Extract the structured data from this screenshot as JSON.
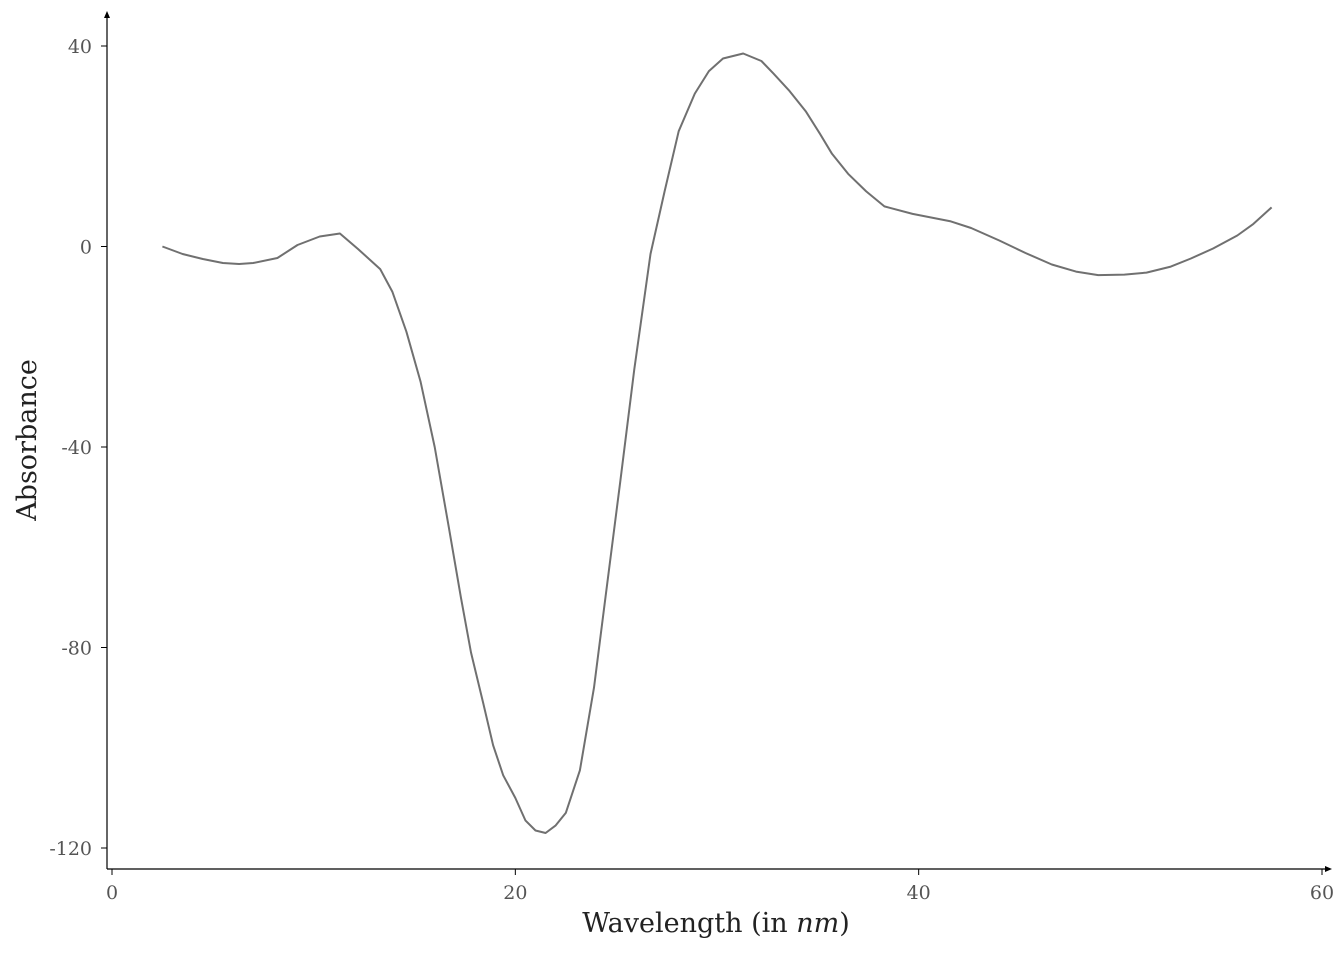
{
  "chart_data": {
    "type": "line",
    "title": "",
    "xlabel": "Wavelength (in ",
    "xlabel_italic": "nm",
    "xlabel_suffix": ")",
    "ylabel": "Absorbance",
    "xlim": [
      0,
      60
    ],
    "ylim": [
      -124,
      44
    ],
    "x_ticks": [
      0,
      20,
      40,
      60
    ],
    "y_ticks": [
      -120,
      -80,
      -40,
      0,
      40
    ],
    "x_tick_labels": [
      "0",
      "20",
      "40",
      "60"
    ],
    "y_tick_labels": [
      "-120",
      "-80",
      "-40",
      "0",
      "40"
    ],
    "grid": false,
    "legend": "none",
    "line_color": "#707070",
    "series": [
      {
        "x": [
          2.5,
          3.5,
          4.5,
          5.5,
          6.3,
          7.0,
          8.2,
          9.2,
          10.3,
          11.3,
          12.2,
          13.3,
          13.9,
          14.6,
          15.3,
          16.0,
          16.7,
          17.3,
          17.8,
          18.4,
          18.9,
          19.4,
          20.0,
          20.5,
          21.0,
          21.5,
          22.0,
          22.5,
          23.2,
          23.9,
          24.5,
          25.2,
          25.9,
          26.7,
          27.4,
          28.1,
          28.9,
          29.6,
          30.3,
          31.3,
          32.2,
          32.8,
          33.6,
          34.4,
          35.1,
          35.7,
          36.5,
          37.4,
          38.3,
          39.7,
          41.6,
          42.6,
          44.0,
          45.3,
          46.6,
          47.8,
          48.9,
          50.2,
          51.3,
          52.5,
          53.5,
          54.6,
          55.8,
          56.6,
          57.5
        ],
        "y": [
          0,
          -1.5,
          -2.5,
          -3.3,
          -3.5,
          -3.3,
          -2.3,
          0.3,
          2.0,
          2.6,
          -0.5,
          -4.5,
          -9.0,
          -17.0,
          -27.0,
          -40.0,
          -56.0,
          -70.0,
          -81.0,
          -91.0,
          -99.5,
          -105.5,
          -110.0,
          -114.5,
          -116.5,
          -117.0,
          -115.5,
          -113.0,
          -104.5,
          -88.0,
          -69.0,
          -47.0,
          -24.5,
          -1.5,
          11.0,
          23.0,
          30.5,
          35.0,
          37.5,
          38.5,
          37.0,
          34.5,
          31.0,
          27.0,
          22.5,
          18.5,
          14.5,
          11.0,
          8.0,
          6.5,
          5.0,
          3.7,
          1.2,
          -1.3,
          -3.6,
          -5.0,
          -5.7,
          -5.6,
          -5.2,
          -4.0,
          -2.4,
          -0.4,
          2.2,
          4.5,
          7.8
        ]
      }
    ]
  }
}
